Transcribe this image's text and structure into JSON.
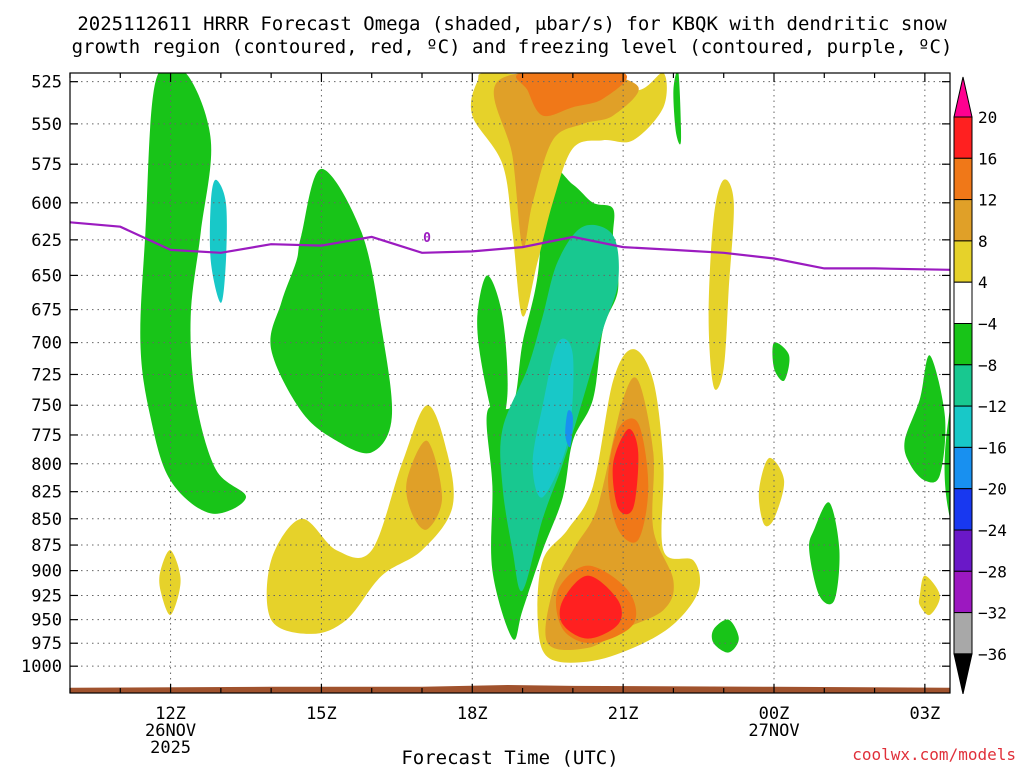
{
  "chart_data": {
    "type": "heatmap",
    "title_line1": "2025112611 HRRR Forecast Omega (shaded, μbar/s) for KBQK with dendritic snow",
    "title_line2": "growth region (contoured, red, ºC) and freezing level (contoured, purple, ºC)",
    "xlabel": "Forecast Time (UTC)",
    "credit": "coolwx.com/models",
    "x_range_hours": [
      10,
      27.5
    ],
    "y_range_hpa": [
      520,
      1030
    ],
    "y_ticks": [
      525,
      550,
      575,
      600,
      625,
      650,
      675,
      700,
      725,
      750,
      775,
      800,
      825,
      850,
      875,
      900,
      925,
      950,
      975,
      1000
    ],
    "x_ticks": [
      {
        "hour": 12,
        "label": "12Z",
        "sub1": "26NOV",
        "sub2": "2025"
      },
      {
        "hour": 15,
        "label": "15Z",
        "sub1": "",
        "sub2": ""
      },
      {
        "hour": 18,
        "label": "18Z",
        "sub1": "",
        "sub2": ""
      },
      {
        "hour": 21,
        "label": "21Z",
        "sub1": "",
        "sub2": ""
      },
      {
        "hour": 24,
        "label": "00Z",
        "sub1": "27NOV",
        "sub2": ""
      },
      {
        "hour": 27,
        "label": "03Z",
        "sub1": "",
        "sub2": ""
      }
    ],
    "colorbar": {
      "colors": [
        "#ff0090",
        "#ff2020",
        "#f07818",
        "#e0a028",
        "#e6d22a",
        "#ffffff",
        "#18c418",
        "#18c890",
        "#18c8c8",
        "#1890f0",
        "#1838f0",
        "#6a18c8",
        "#9c18c0",
        "#a8a8a8",
        "#000000"
      ],
      "labels": [
        "20",
        "16",
        "12",
        "8",
        "4",
        "−4",
        "−8",
        "−12",
        "−16",
        "−20",
        "−24",
        "−28",
        "−32",
        "−36"
      ]
    },
    "freezing_level": {
      "label": "0",
      "points": [
        [
          10,
          613
        ],
        [
          11,
          616
        ],
        [
          12,
          632
        ],
        [
          13,
          634
        ],
        [
          14,
          628
        ],
        [
          15,
          629
        ],
        [
          16,
          623
        ],
        [
          17,
          634
        ],
        [
          18,
          633
        ],
        [
          19,
          630
        ],
        [
          20,
          623
        ],
        [
          21,
          630
        ],
        [
          22,
          632
        ],
        [
          23,
          634
        ],
        [
          24,
          638
        ],
        [
          25,
          645
        ],
        [
          26,
          645
        ],
        [
          27.5,
          646
        ]
      ]
    },
    "omega_regions": [
      {
        "value": -6,
        "points": [
          [
            11.7,
            525
          ],
          [
            12.3,
            520
          ],
          [
            12.8,
            560
          ],
          [
            12.6,
            620
          ],
          [
            12.4,
            680
          ],
          [
            12.5,
            745
          ],
          [
            12.9,
            805
          ],
          [
            13.5,
            830
          ],
          [
            12.8,
            845
          ],
          [
            12.0,
            815
          ],
          [
            11.6,
            760
          ],
          [
            11.4,
            700
          ],
          [
            11.5,
            620
          ]
        ]
      },
      {
        "value": -12,
        "points": [
          [
            12.9,
            585
          ],
          [
            13.1,
            600
          ],
          [
            13.1,
            640
          ],
          [
            13.0,
            670
          ],
          [
            12.8,
            640
          ],
          [
            12.8,
            600
          ]
        ]
      },
      {
        "value": -6,
        "points": [
          [
            14.6,
            622
          ],
          [
            15.0,
            578
          ],
          [
            15.8,
            620
          ],
          [
            16.2,
            690
          ],
          [
            16.4,
            760
          ],
          [
            16.0,
            790
          ],
          [
            15.3,
            780
          ],
          [
            14.6,
            755
          ],
          [
            14.0,
            705
          ],
          [
            14.2,
            670
          ],
          [
            14.5,
            640
          ]
        ]
      },
      {
        "value": -6,
        "points": [
          [
            18.3,
            650
          ],
          [
            18.6,
            680
          ],
          [
            18.7,
            740
          ],
          [
            18.5,
            770
          ],
          [
            18.2,
            720
          ],
          [
            18.1,
            680
          ]
        ]
      },
      {
        "value": -6,
        "points": [
          [
            19.5,
            580
          ],
          [
            20.0,
            588
          ],
          [
            20.4,
            600
          ],
          [
            20.8,
            604
          ],
          [
            20.8,
            625
          ],
          [
            20.9,
            660
          ],
          [
            20.6,
            690
          ],
          [
            20.4,
            745
          ],
          [
            20.0,
            780
          ],
          [
            19.8,
            830
          ],
          [
            19.4,
            880
          ],
          [
            19.0,
            940
          ],
          [
            18.8,
            970
          ],
          [
            18.4,
            900
          ],
          [
            18.4,
            820
          ],
          [
            18.3,
            755
          ],
          [
            18.8,
            750
          ],
          [
            19.0,
            700
          ],
          [
            19.3,
            650
          ]
        ]
      },
      {
        "value": -9,
        "points": [
          [
            20.2,
            616
          ],
          [
            20.8,
            622
          ],
          [
            20.9,
            655
          ],
          [
            20.6,
            690
          ],
          [
            20.2,
            745
          ],
          [
            19.8,
            800
          ],
          [
            19.4,
            850
          ],
          [
            19.0,
            920
          ],
          [
            18.8,
            880
          ],
          [
            18.6,
            820
          ],
          [
            18.6,
            770
          ],
          [
            19.1,
            720
          ],
          [
            19.4,
            680
          ],
          [
            19.7,
            640
          ]
        ]
      },
      {
        "value": -14,
        "points": [
          [
            19.7,
            700
          ],
          [
            20.0,
            710
          ],
          [
            19.9,
            780
          ],
          [
            19.4,
            830
          ],
          [
            19.2,
            800
          ],
          [
            19.4,
            750
          ]
        ]
      },
      {
        "value": -18,
        "points": [
          [
            19.9,
            755
          ],
          [
            20.0,
            760
          ],
          [
            19.95,
            785
          ],
          [
            19.85,
            775
          ]
        ]
      },
      {
        "value": 6,
        "points": [
          [
            18.1,
            525
          ],
          [
            18.4,
            520
          ],
          [
            20.4,
            525
          ],
          [
            21.3,
            530
          ],
          [
            21.8,
            520
          ],
          [
            21.8,
            540
          ],
          [
            21.2,
            560
          ],
          [
            20.6,
            560
          ],
          [
            20.0,
            565
          ],
          [
            19.6,
            600
          ],
          [
            19.3,
            640
          ],
          [
            19.0,
            680
          ],
          [
            18.8,
            620
          ],
          [
            18.6,
            575
          ],
          [
            18.0,
            545
          ]
        ]
      },
      {
        "value": 10,
        "points": [
          [
            18.5,
            525
          ],
          [
            20.3,
            520
          ],
          [
            21.3,
            528
          ],
          [
            20.8,
            545
          ],
          [
            20.2,
            550
          ],
          [
            19.6,
            560
          ],
          [
            19.2,
            600
          ],
          [
            19.0,
            630
          ],
          [
            18.8,
            570
          ]
        ]
      },
      {
        "value": 14,
        "points": [
          [
            19.0,
            520
          ],
          [
            21.0,
            520
          ],
          [
            20.6,
            535
          ],
          [
            20.0,
            540
          ],
          [
            19.4,
            545
          ],
          [
            19.1,
            530
          ]
        ]
      },
      {
        "value": 6,
        "points": [
          [
            20.4,
            820
          ],
          [
            20.8,
            730
          ],
          [
            21.2,
            705
          ],
          [
            21.6,
            730
          ],
          [
            21.8,
            800
          ],
          [
            21.8,
            880
          ],
          [
            22.4,
            890
          ],
          [
            22.5,
            920
          ],
          [
            22.0,
            955
          ],
          [
            21.2,
            980
          ],
          [
            20.3,
            995
          ],
          [
            19.5,
            990
          ],
          [
            19.3,
            950
          ],
          [
            19.4,
            890
          ],
          [
            19.9,
            860
          ]
        ]
      },
      {
        "value": 10,
        "points": [
          [
            20.6,
            820
          ],
          [
            21.0,
            745
          ],
          [
            21.3,
            730
          ],
          [
            21.6,
            790
          ],
          [
            21.6,
            860
          ],
          [
            22.0,
            910
          ],
          [
            21.8,
            940
          ],
          [
            21.0,
            960
          ],
          [
            20.3,
            980
          ],
          [
            19.5,
            975
          ],
          [
            19.6,
            920
          ],
          [
            20.0,
            880
          ],
          [
            20.4,
            850
          ]
        ]
      },
      {
        "value": 14,
        "points": [
          [
            20.7,
            815
          ],
          [
            20.9,
            770
          ],
          [
            21.3,
            765
          ],
          [
            21.5,
            820
          ],
          [
            21.3,
            870
          ],
          [
            20.9,
            860
          ]
        ]
      },
      {
        "value": 14,
        "points": [
          [
            19.7,
            920
          ],
          [
            20.3,
            895
          ],
          [
            21.1,
            920
          ],
          [
            21.2,
            955
          ],
          [
            20.4,
            975
          ],
          [
            19.8,
            960
          ]
        ]
      },
      {
        "value": 18,
        "points": [
          [
            20.8,
            800
          ],
          [
            21.1,
            770
          ],
          [
            21.3,
            790
          ],
          [
            21.2,
            840
          ],
          [
            20.9,
            840
          ]
        ]
      },
      {
        "value": 18,
        "points": [
          [
            19.8,
            930
          ],
          [
            20.3,
            905
          ],
          [
            20.9,
            930
          ],
          [
            20.9,
            955
          ],
          [
            20.3,
            970
          ],
          [
            19.8,
            955
          ]
        ]
      },
      {
        "value": 6,
        "points": [
          [
            14.0,
            890
          ],
          [
            14.6,
            850
          ],
          [
            15.3,
            880
          ],
          [
            16.0,
            880
          ],
          [
            16.6,
            800
          ],
          [
            17.1,
            750
          ],
          [
            17.5,
            790
          ],
          [
            17.6,
            840
          ],
          [
            17.0,
            880
          ],
          [
            16.2,
            905
          ],
          [
            15.5,
            950
          ],
          [
            14.8,
            965
          ],
          [
            14.0,
            950
          ]
        ]
      },
      {
        "value": 10,
        "points": [
          [
            16.7,
            815
          ],
          [
            17.1,
            780
          ],
          [
            17.4,
            830
          ],
          [
            17.1,
            860
          ],
          [
            16.8,
            845
          ]
        ]
      },
      {
        "value": 6,
        "points": [
          [
            11.8,
            900
          ],
          [
            12.0,
            880
          ],
          [
            12.2,
            910
          ],
          [
            12.0,
            945
          ],
          [
            11.8,
            920
          ]
        ]
      },
      {
        "value": 6,
        "points": [
          [
            22.8,
            610
          ],
          [
            23.0,
            585
          ],
          [
            23.2,
            600
          ],
          [
            23.1,
            660
          ],
          [
            23.0,
            720
          ],
          [
            22.8,
            735
          ],
          [
            22.7,
            680
          ]
        ]
      },
      {
        "value": 6,
        "points": [
          [
            23.7,
            825
          ],
          [
            23.9,
            795
          ],
          [
            24.2,
            815
          ],
          [
            24.0,
            850
          ],
          [
            23.8,
            855
          ]
        ]
      },
      {
        "value": 6,
        "points": [
          [
            26.9,
            925
          ],
          [
            27.0,
            905
          ],
          [
            27.3,
            925
          ],
          [
            27.1,
            945
          ],
          [
            26.9,
            935
          ]
        ]
      },
      {
        "value": -6,
        "points": [
          [
            24.0,
            700
          ],
          [
            24.3,
            710
          ],
          [
            24.2,
            730
          ],
          [
            24.0,
            720
          ]
        ]
      },
      {
        "value": -6,
        "points": [
          [
            24.8,
            860
          ],
          [
            25.1,
            835
          ],
          [
            25.3,
            880
          ],
          [
            25.2,
            930
          ],
          [
            24.9,
            925
          ],
          [
            24.7,
            880
          ]
        ]
      },
      {
        "value": -6,
        "points": [
          [
            22.8,
            960
          ],
          [
            23.1,
            950
          ],
          [
            23.3,
            970
          ],
          [
            23.1,
            985
          ],
          [
            22.8,
            975
          ]
        ]
      },
      {
        "value": -6,
        "points": [
          [
            26.6,
            780
          ],
          [
            26.9,
            745
          ],
          [
            27.1,
            710
          ],
          [
            27.4,
            760
          ],
          [
            27.3,
            810
          ],
          [
            27.0,
            815
          ],
          [
            26.7,
            800
          ]
        ]
      },
      {
        "value": -6,
        "points": [
          [
            27.5,
            850
          ],
          [
            27.4,
            790
          ],
          [
            27.7,
            700
          ],
          [
            28.0,
            620
          ],
          [
            28.0,
            895
          ],
          [
            27.8,
            880
          ]
        ]
      },
      {
        "value": -6,
        "points": [
          [
            22.0,
            530
          ],
          [
            22.1,
            520
          ],
          [
            22.15,
            560
          ],
          [
            22.05,
            555
          ]
        ]
      }
    ]
  }
}
